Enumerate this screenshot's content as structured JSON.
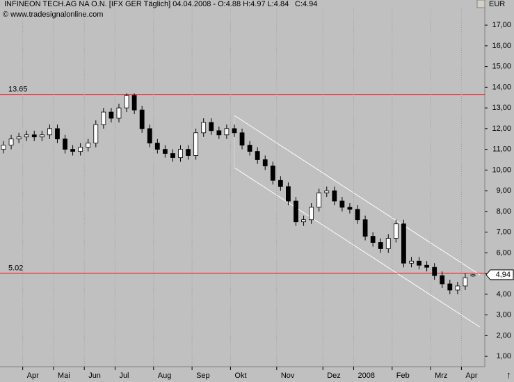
{
  "chart_data": {
    "type": "candlestick",
    "title": "INFINEON TECH.AG NA O.N. [IFX GER  Täglich] 04.04.2008 - O:4.88 H:4.97 L:4.84",
    "close_label": "C:4.94",
    "copyright": "© www.tradesignalonline.com",
    "unit": "EUR",
    "categories": [
      null,
      null,
      null,
      "Apr",
      null,
      null,
      null,
      "Mai",
      null,
      null,
      null,
      "Jun",
      null,
      null,
      null,
      "Jul",
      null,
      null,
      null,
      null,
      "Aug",
      null,
      null,
      null,
      null,
      "Sep",
      null,
      null,
      null,
      null,
      "Okt",
      null,
      null,
      null,
      null,
      null,
      "Nov",
      null,
      null,
      null,
      null,
      null,
      "Dez",
      null,
      null,
      null,
      "2008",
      null,
      null,
      null,
      null,
      "Feb",
      null,
      null,
      null,
      null,
      "Mrz",
      null,
      null,
      null,
      "Apr",
      null
    ],
    "open": [
      11.0,
      11.2,
      11.5,
      11.6,
      11.7,
      11.6,
      11.7,
      12.0,
      11.5,
      11.0,
      10.9,
      11.1,
      11.3,
      12.2,
      12.8,
      12.5,
      13.0,
      13.6,
      12.9,
      12.0,
      11.3,
      11.0,
      10.8,
      10.6,
      11.0,
      10.7,
      11.8,
      12.3,
      11.9,
      11.7,
      12.0,
      11.8,
      11.2,
      10.9,
      10.5,
      10.2,
      9.5,
      9.2,
      8.5,
      7.5,
      7.6,
      8.2,
      8.9,
      9.0,
      8.5,
      8.2,
      8.1,
      7.6,
      6.8,
      6.5,
      6.2,
      6.7,
      7.4,
      5.5,
      5.6,
      5.4,
      5.3,
      4.9,
      4.5,
      4.2,
      4.4,
      4.88
    ],
    "high": [
      11.4,
      11.7,
      11.8,
      11.9,
      11.9,
      11.9,
      12.2,
      12.2,
      11.7,
      11.2,
      11.3,
      11.5,
      12.4,
      13.0,
      13.0,
      13.2,
      13.7,
      13.7,
      13.1,
      12.2,
      11.5,
      11.2,
      11.0,
      11.2,
      11.2,
      12.0,
      12.5,
      12.5,
      12.1,
      12.2,
      12.2,
      12.0,
      11.4,
      11.1,
      10.7,
      10.4,
      9.7,
      9.4,
      8.7,
      7.8,
      8.4,
      9.1,
      9.2,
      9.2,
      8.7,
      8.4,
      8.3,
      7.8,
      7.0,
      6.7,
      6.9,
      7.6,
      7.6,
      5.8,
      5.8,
      5.6,
      5.5,
      5.1,
      4.7,
      4.6,
      5.0,
      4.97
    ],
    "low": [
      10.8,
      11.0,
      11.3,
      11.4,
      11.4,
      11.4,
      11.5,
      11.3,
      10.8,
      10.7,
      10.7,
      10.9,
      11.1,
      12.0,
      12.3,
      12.3,
      12.8,
      12.7,
      11.8,
      11.1,
      10.8,
      10.6,
      10.4,
      10.4,
      10.5,
      10.5,
      11.6,
      11.7,
      11.5,
      11.5,
      11.6,
      11.0,
      10.7,
      10.3,
      10.0,
      9.3,
      9.0,
      8.3,
      7.3,
      7.3,
      7.4,
      8.0,
      8.7,
      8.3,
      8.0,
      7.9,
      7.4,
      6.6,
      6.3,
      6.0,
      6.0,
      6.5,
      5.3,
      5.3,
      5.2,
      5.1,
      4.7,
      4.3,
      4.0,
      4.0,
      4.2,
      4.84
    ],
    "close": [
      11.2,
      11.5,
      11.6,
      11.7,
      11.6,
      11.7,
      12.0,
      11.5,
      11.0,
      10.9,
      11.1,
      11.3,
      12.2,
      12.8,
      12.5,
      13.0,
      13.6,
      12.9,
      12.0,
      11.3,
      11.0,
      10.8,
      10.6,
      11.0,
      10.7,
      11.8,
      12.3,
      11.9,
      11.7,
      12.0,
      11.8,
      11.2,
      10.9,
      10.5,
      10.2,
      9.5,
      9.2,
      8.5,
      7.5,
      7.6,
      8.2,
      8.9,
      9.0,
      8.5,
      8.2,
      8.1,
      7.6,
      6.8,
      6.5,
      6.2,
      6.7,
      7.4,
      5.5,
      5.6,
      5.4,
      5.3,
      4.9,
      4.5,
      4.2,
      4.4,
      4.8,
      4.94
    ],
    "ylim": [
      0.5,
      17.81
    ],
    "yticks": [
      {
        "value": 1,
        "label": "1,00"
      },
      {
        "value": 2,
        "label": "2,00"
      },
      {
        "value": 3,
        "label": "3,00"
      },
      {
        "value": 4,
        "label": "4,00"
      },
      {
        "value": 5,
        "label": "5,00"
      },
      {
        "value": 6,
        "label": "6,00"
      },
      {
        "value": 7,
        "label": "7,00"
      },
      {
        "value": 8,
        "label": "8,00"
      },
      {
        "value": 9,
        "label": "9,00"
      },
      {
        "value": 10,
        "label": "10,00"
      },
      {
        "value": 11,
        "label": "11,00"
      },
      {
        "value": 12,
        "label": "12,00"
      },
      {
        "value": 13,
        "label": "13,00"
      },
      {
        "value": 14,
        "label": "14,00"
      },
      {
        "value": 15,
        "label": "15,00"
      },
      {
        "value": 16,
        "label": "16,00"
      },
      {
        "value": 17,
        "label": "17,00"
      }
    ],
    "hlines": [
      {
        "value": 13.65,
        "label": "13.65"
      },
      {
        "value": 5.02,
        "label": "5.02"
      }
    ],
    "last_price": {
      "value": 4.94,
      "label": "4,94"
    },
    "hline_color": "#ff0000",
    "up_color": "#ffffff",
    "down_color": "#000000",
    "close_color": "#00a000"
  }
}
